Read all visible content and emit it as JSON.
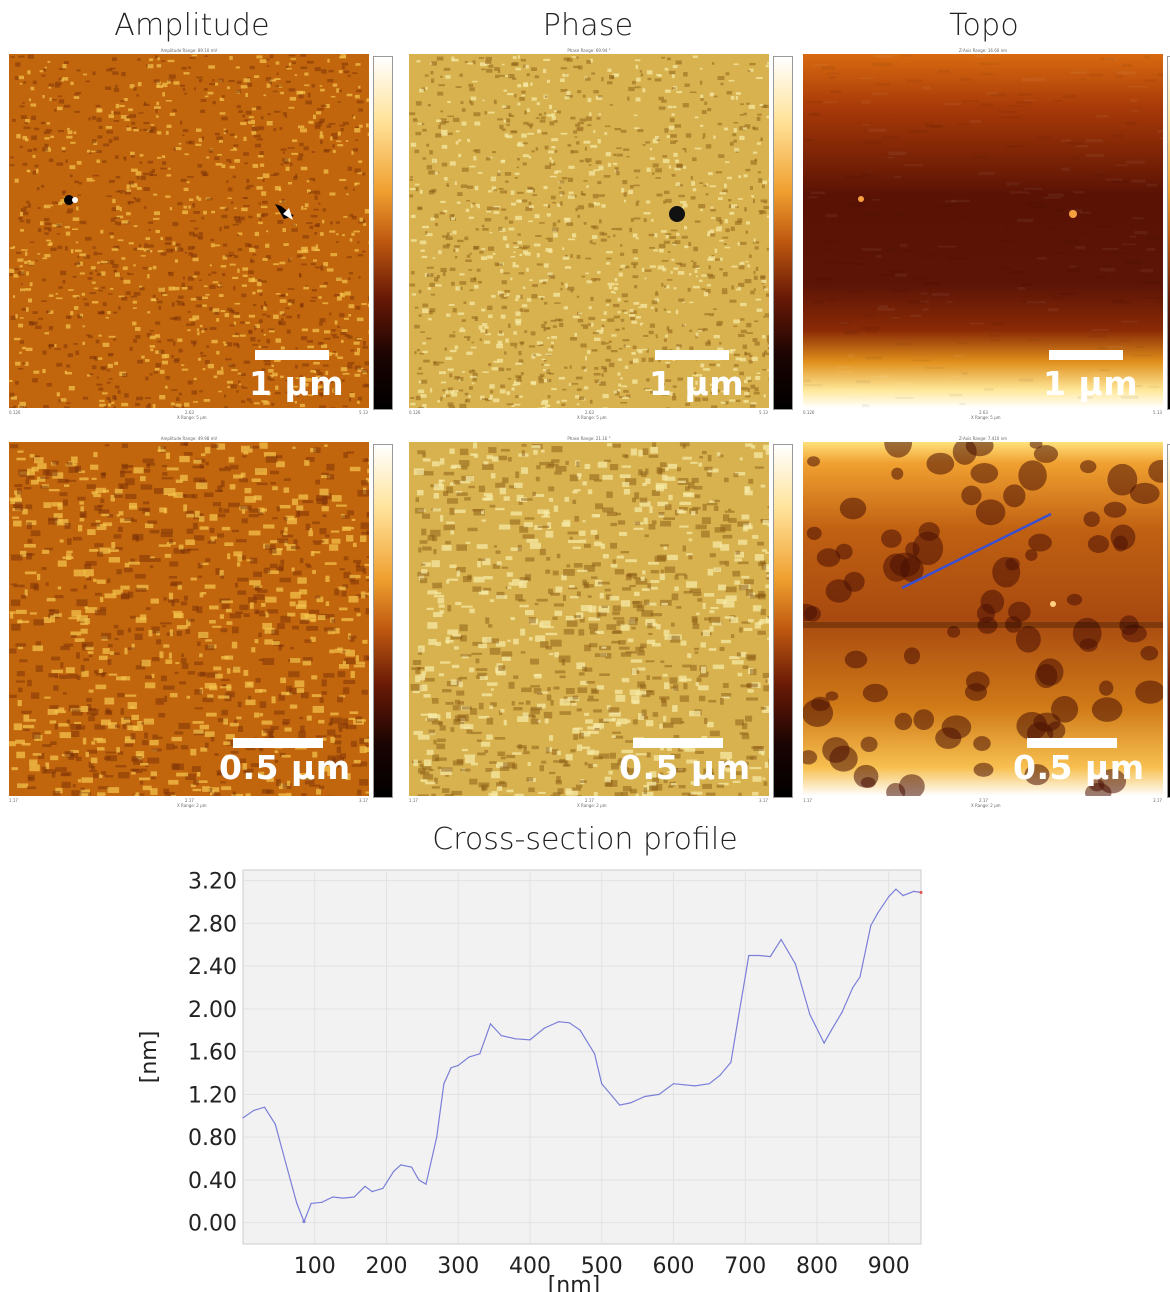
{
  "columns": [
    {
      "title": "Amplitude",
      "scale_top": "1 μm",
      "scale_bottom": "0.5 μm",
      "top_header": "Amplitude Range: 89.10 mV",
      "bottom_header": "Amplitude Range: 49.98 mV",
      "top_axis_left": "0.120",
      "top_axis_mid": "2.63",
      "top_axis_right": "5.13",
      "top_axis_label": "X Range: 5 μm",
      "bottom_axis_left": "1.17",
      "bottom_axis_mid": "2.17",
      "bottom_axis_right": "3.17",
      "bottom_axis_label": "X Range: 2 μm",
      "colors": {
        "base": "#c2660e",
        "light": "#f3c24a",
        "dark": "#7a3006"
      }
    },
    {
      "title": "Phase",
      "scale_top": "1 μm",
      "scale_bottom": "0.5 μm",
      "top_header": "Phase Range: 69.94 °",
      "bottom_header": "Phase Range: 21.16 °",
      "top_axis_left": "0.126",
      "top_axis_mid": "2.63",
      "top_axis_right": "5.13",
      "top_axis_label": "X Range: 5 μm",
      "bottom_axis_left": "1.17",
      "bottom_axis_mid": "2.17",
      "bottom_axis_right": "3.17",
      "bottom_axis_label": "X Range: 2 μm",
      "colors": {
        "base": "#d8b24e",
        "light": "#f6e8a4",
        "dark": "#8a5a14"
      }
    },
    {
      "title": "Topo",
      "scale_top": "1 μm",
      "scale_bottom": "0.5 μm",
      "top_header": "Z-Axis Range: 16.60 nm",
      "bottom_header": "Z-Axis Range: 7.410 nm",
      "top_axis_left": "0.120",
      "top_axis_mid": "2.63",
      "top_axis_right": "5.13",
      "top_axis_label": "X Range: 5 μm",
      "bottom_axis_left": "1.17",
      "bottom_axis_mid": "2.17",
      "bottom_axis_right": "3.17",
      "bottom_axis_label": "X Range: 2 μm",
      "colors": {
        "base": "#6a1a06",
        "light": "#ffe39a",
        "dark": "#3a0a02"
      }
    }
  ],
  "section_title": "Cross-section profile",
  "colors": {
    "line": "#7b7fd8",
    "plot_bg": "#f2f2f2",
    "grid": "#e2e2e2",
    "profile_marker": "#3a4fd0",
    "endpoint": "#e05050"
  },
  "chart_data": {
    "type": "line",
    "xlabel": "[nm]",
    "ylabel": "[nm]",
    "xlim": [
      0,
      945
    ],
    "ylim": [
      -0.2,
      3.3
    ],
    "x_ticks": [
      "100",
      "200",
      "300",
      "400",
      "500",
      "600",
      "700",
      "800",
      "900"
    ],
    "y_ticks": [
      "0.00",
      "0.40",
      "0.80",
      "1.20",
      "1.60",
      "2.00",
      "2.40",
      "2.80",
      "3.20"
    ],
    "series": [
      {
        "x": [
          0,
          15,
          30,
          45,
          60,
          75,
          85,
          95,
          110,
          125,
          140,
          155,
          170,
          180,
          195,
          210,
          220,
          235,
          245,
          255,
          270,
          280,
          290,
          300,
          315,
          330,
          345,
          360,
          380,
          400,
          420,
          440,
          455,
          470,
          490,
          500,
          515,
          525,
          540,
          560,
          580,
          600,
          615,
          630,
          650,
          665,
          680,
          690,
          705,
          720,
          735,
          750,
          770,
          790,
          810,
          820,
          835,
          850,
          860,
          875,
          885,
          900,
          910,
          920,
          935,
          945
        ],
        "y": [
          0.98,
          1.05,
          1.08,
          0.92,
          0.55,
          0.18,
          0.01,
          0.18,
          0.19,
          0.24,
          0.23,
          0.24,
          0.34,
          0.29,
          0.32,
          0.48,
          0.54,
          0.52,
          0.4,
          0.36,
          0.8,
          1.3,
          1.45,
          1.47,
          1.55,
          1.58,
          1.86,
          1.75,
          1.72,
          1.71,
          1.82,
          1.88,
          1.87,
          1.8,
          1.58,
          1.3,
          1.18,
          1.1,
          1.12,
          1.18,
          1.2,
          1.3,
          1.29,
          1.28,
          1.3,
          1.38,
          1.5,
          1.9,
          2.5,
          2.5,
          2.49,
          2.65,
          2.42,
          1.95,
          1.68,
          1.8,
          1.97,
          2.2,
          2.3,
          2.78,
          2.9,
          3.05,
          3.12,
          3.06,
          3.1,
          3.09
        ]
      }
    ]
  }
}
